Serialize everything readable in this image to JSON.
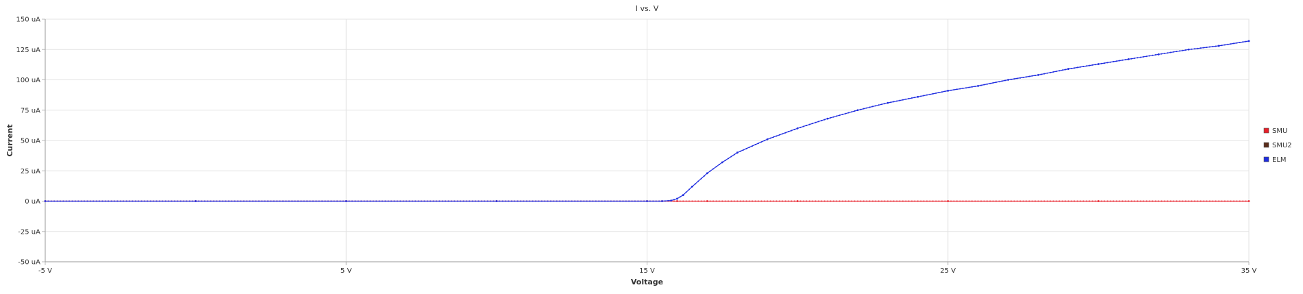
{
  "chart_data": {
    "type": "line",
    "title": "I vs. V",
    "xlabel": "Voltage",
    "ylabel": "Current",
    "xlim": [
      -5,
      35
    ],
    "ylim": [
      -50,
      150
    ],
    "x_ticks": [
      -5,
      5,
      15,
      25,
      35
    ],
    "x_tick_labels": [
      "-5 V",
      "5 V",
      "15 V",
      "25 V",
      "35 V"
    ],
    "y_ticks": [
      150,
      125,
      100,
      75,
      50,
      25,
      0,
      -25,
      -50
    ],
    "y_tick_labels": [
      "150 uA",
      "125 uA",
      "100 uA",
      "75 uA",
      "50 uA",
      "25 uA",
      "0 uA",
      "-25 uA",
      "-50 uA"
    ],
    "grid": true,
    "legend_position": "right",
    "series": [
      {
        "name": "SMU",
        "color": "#e8202a",
        "x": [
          -5,
          0,
          5,
          10,
          15,
          15.5,
          16,
          17,
          20,
          25,
          30,
          35
        ],
        "y": [
          0,
          0,
          0,
          0,
          0,
          0,
          0,
          0,
          0,
          0,
          0,
          0
        ]
      },
      {
        "name": "SMU2",
        "color": "#5a2d1a",
        "x": [],
        "y": []
      },
      {
        "name": "ELM",
        "color": "#1f2de0",
        "x": [
          -5,
          0,
          5,
          10,
          15,
          15.5,
          15.8,
          16.0,
          16.2,
          16.5,
          17.0,
          17.5,
          18.0,
          19.0,
          20.0,
          21.0,
          22.0,
          23.0,
          24.0,
          25.0,
          26.0,
          27.0,
          28.0,
          29.0,
          30.0,
          31.0,
          32.0,
          33.0,
          34.0,
          35.0
        ],
        "y": [
          0,
          0,
          0,
          0,
          0,
          0,
          0.5,
          2,
          5,
          12,
          23,
          32,
          40,
          51,
          60,
          68,
          75,
          81,
          86,
          91,
          95,
          100,
          104,
          109,
          113,
          117,
          121,
          125,
          128,
          132
        ]
      }
    ]
  }
}
